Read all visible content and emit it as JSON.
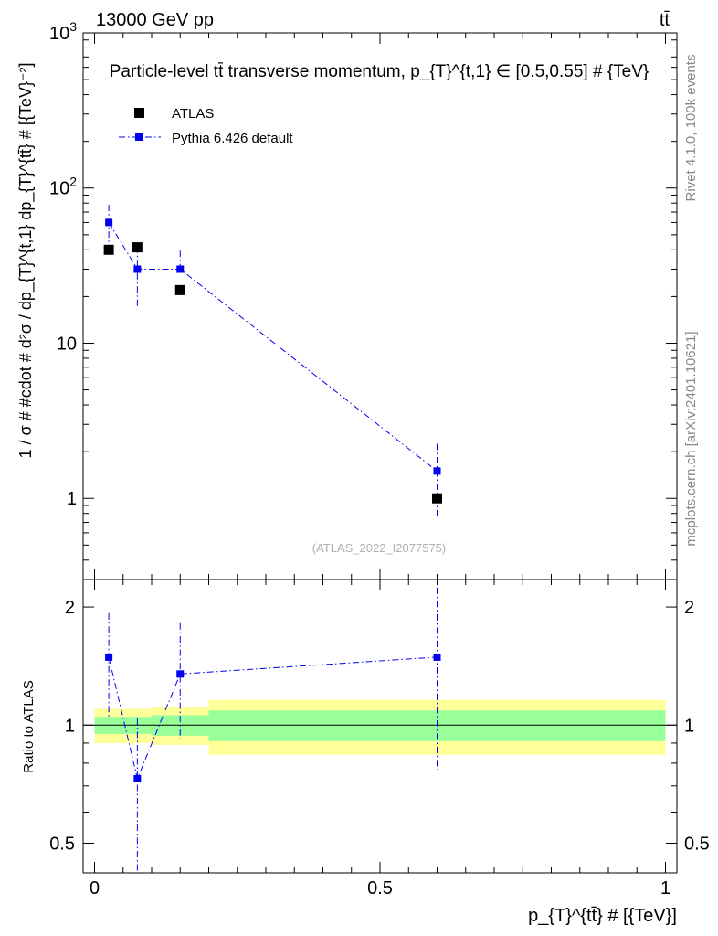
{
  "header": {
    "energy_label": "13000 GeV pp",
    "process_label": "tt̄"
  },
  "colors": {
    "data": "#000000",
    "mc": "#0000ee",
    "band_inner": "#99ff99",
    "band_outer": "#ffff99",
    "sidebar_text": "#888888",
    "watermark": "#b0b0b0"
  },
  "sidebar": {
    "rivet": "Rivet 4.1.0,  100k events",
    "mcplots": "mcplots.cern.ch [arXiv:2401.10621]"
  },
  "chart_data": [
    {
      "type": "scatter",
      "title": "Particle-level tt̄ transverse momentum, p_{T}^{t,1} ∈ [0.5,0.55] # {TeV}",
      "ylabel": "1 / σ # #cdot # d²σ / dp_{T}^{t,1} dp_{T}^{tt̄} # [{TeV}⁻²]",
      "yscale": "log",
      "ylim": [
        0.3,
        1000
      ],
      "xlim": [
        -0.02,
        1.02
      ],
      "grid": false,
      "legend_position": "top-left",
      "watermark": "(ATLAS_2022_I2077575)",
      "ytick_labels": [
        {
          "value": 1,
          "label": "1"
        },
        {
          "value": 10,
          "label": "10"
        },
        {
          "value": 100,
          "base": "10",
          "exp": "2"
        },
        {
          "value": 1000,
          "base": "10",
          "exp": "3"
        }
      ],
      "series": [
        {
          "name": "ATLAS",
          "marker": "square",
          "x": [
            0.025,
            0.075,
            0.15,
            0.6
          ],
          "y": [
            40,
            41.5,
            22,
            1.0
          ],
          "yerr_low": [
            0,
            0,
            0,
            0
          ],
          "yerr_high": [
            0,
            0,
            0,
            0
          ]
        },
        {
          "name": "Pythia 6.426 default",
          "marker": "square",
          "line": "dash-dot",
          "x": [
            0.025,
            0.075,
            0.15,
            0.6
          ],
          "y": [
            60,
            30,
            30,
            1.5
          ],
          "yerr_low": [
            40,
            17,
            30,
            0.75
          ],
          "yerr_high": [
            78,
            42,
            39.5,
            2.25
          ]
        }
      ]
    },
    {
      "type": "scatter",
      "ylabel": "Ratio to ATLAS",
      "xlabel": "p_{T}^{tt̄} # [{TeV}]",
      "yscale": "log",
      "ylim": [
        0.42,
        2.35
      ],
      "xlim": [
        -0.02,
        1.02
      ],
      "reference_line": 1,
      "ytick_labels": [
        {
          "value": 0.5,
          "label": "0.5"
        },
        {
          "value": 1,
          "label": "1"
        },
        {
          "value": 2,
          "label": "2"
        }
      ],
      "xtick_labels": [
        {
          "value": 0,
          "label": "0"
        },
        {
          "value": 0.5,
          "label": "0.5"
        },
        {
          "value": 1,
          "label": "1"
        }
      ],
      "bands": [
        {
          "x_low": 0.0,
          "x_high": 0.1,
          "inner": [
            0.95,
            1.05
          ],
          "outer": [
            0.9,
            1.1
          ]
        },
        {
          "x_low": 0.1,
          "x_high": 0.2,
          "inner": [
            0.94,
            1.06
          ],
          "outer": [
            0.89,
            1.11
          ]
        },
        {
          "x_low": 0.2,
          "x_high": 1.0,
          "inner": [
            0.91,
            1.09
          ],
          "outer": [
            0.84,
            1.16
          ]
        }
      ],
      "series": [
        {
          "name": "Pythia 6.426 default",
          "x": [
            0.025,
            0.075,
            0.15,
            0.6
          ],
          "y": [
            1.49,
            0.73,
            1.35,
            1.49
          ],
          "yerr_low": [
            1.04,
            0.41,
            0.92,
            0.77
          ],
          "yerr_high": [
            1.93,
            1.04,
            1.82,
            2.24
          ]
        }
      ]
    }
  ]
}
